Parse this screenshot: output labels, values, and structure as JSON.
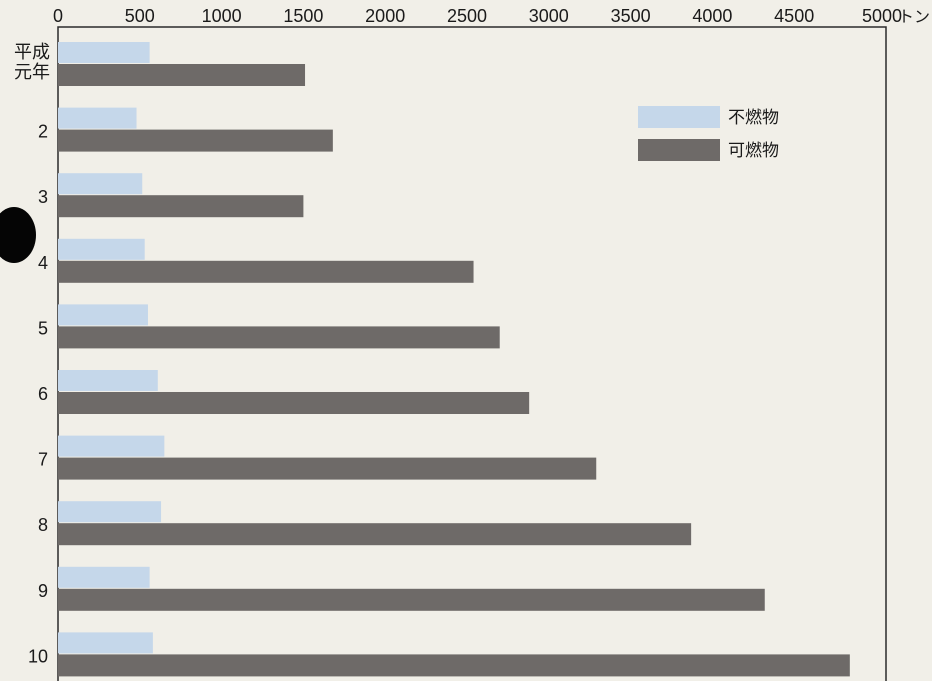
{
  "chart_data": {
    "type": "bar",
    "orientation": "horizontal",
    "categories": [
      "平成元年",
      "2",
      "3",
      "4",
      "5",
      "6",
      "7",
      "8",
      "9",
      "10"
    ],
    "series": [
      {
        "name": "不燃物",
        "color": "#c5d7ea",
        "values": [
          560,
          480,
          515,
          530,
          550,
          610,
          650,
          630,
          560,
          580
        ]
      },
      {
        "name": "可燃物",
        "color": "#6e6a68",
        "values": [
          1510,
          1680,
          1500,
          2540,
          2700,
          2880,
          3290,
          3870,
          4320,
          4840
        ]
      }
    ],
    "x_ticks": [
      "0",
      "500",
      "1000",
      "1500",
      "2000",
      "2500",
      "3000",
      "3500",
      "4000",
      "4500",
      "5000"
    ],
    "x_unit": "トン",
    "xlim": [
      0,
      5000
    ],
    "legend": {
      "position": "top-right",
      "entries": [
        "不燃物",
        "可燃物"
      ]
    },
    "category_label_lines": {
      "平成元年": [
        "平成",
        "元年"
      ]
    },
    "grid": false
  }
}
